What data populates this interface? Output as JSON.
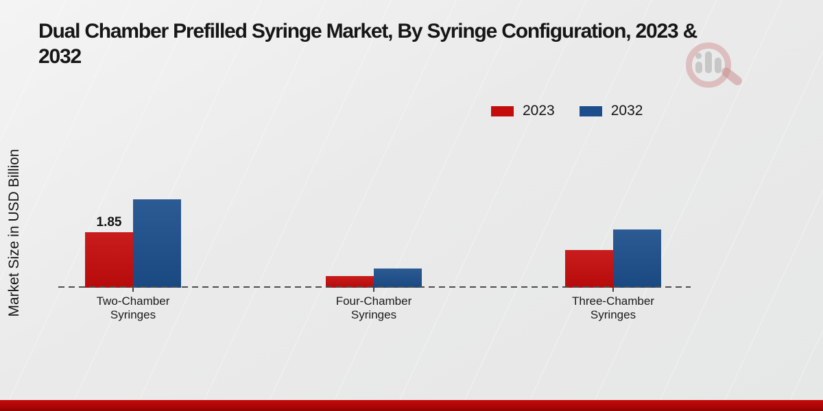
{
  "header": {
    "title_line1": "Dual Chamber Prefilled Syringe Market, By Syringe Configuration, 2023 &",
    "title_line2": "2032",
    "title_full": "Dual Chamber Prefilled Syringe Market, By Syringe Configuration, 2023 & 2032"
  },
  "legend": {
    "items": [
      {
        "label": "2023",
        "color": "#c50c0c"
      },
      {
        "label": "2032",
        "color": "#1c4e8b"
      }
    ]
  },
  "logo": {
    "name": "magnifier-bar-chart-watermark"
  },
  "colors": {
    "series_2023": "#c50c0c",
    "series_2032": "#1c4e8b",
    "footer_band": "#b00606",
    "background": "#e9eaea",
    "baseline": "#4d4d4d"
  },
  "chart_data": {
    "type": "bar",
    "title": "Dual Chamber Prefilled Syringe Market, By Syringe Configuration, 2023 & 2032",
    "categories": [
      "Two-Chamber Syringes",
      "Four-Chamber Syringes",
      "Three-Chamber Syringes"
    ],
    "series": [
      {
        "name": "2023",
        "color": "#c50c0c",
        "values": [
          1.85,
          0.4,
          1.25
        ]
      },
      {
        "name": "2032",
        "color": "#1c4e8b",
        "values": [
          2.95,
          0.65,
          1.95
        ]
      }
    ],
    "data_labels": [
      {
        "series": "2023",
        "category": "Two-Chamber Syringes",
        "text": "1.85"
      }
    ],
    "xlabel": "",
    "ylabel": "Market Size in USD Billion",
    "ylim": [
      0,
      6.5
    ],
    "grid": false,
    "y_axis_ticks_visible": false,
    "legend_position": "top-right",
    "baseline_style": "dashed"
  }
}
